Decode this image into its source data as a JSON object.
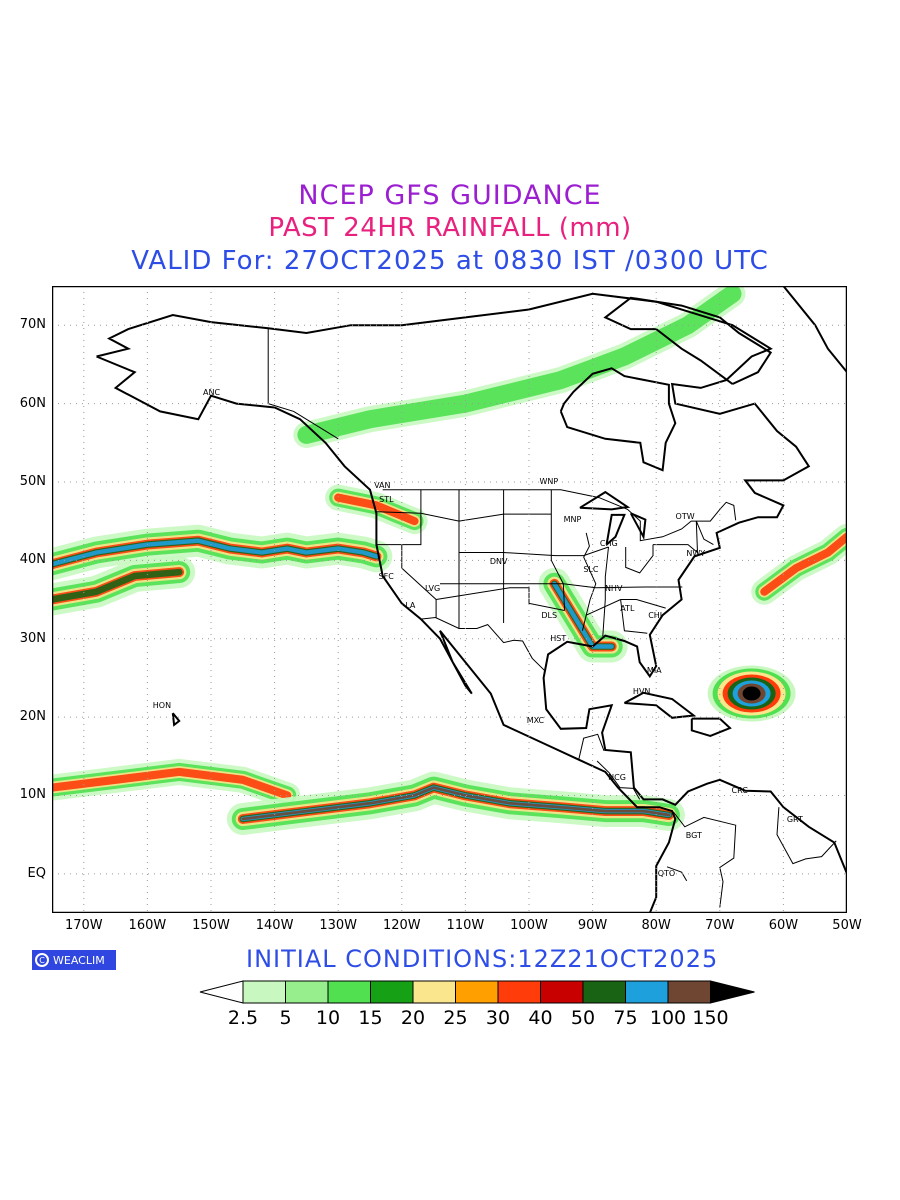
{
  "title": {
    "line1": "NCEP GFS GUIDANCE",
    "line2": "PAST 24HR RAINFALL (mm)",
    "line3": "VALID For: 27OCT2025 at 0830 IST /0300 UTC"
  },
  "colors": {
    "title1": "#9b1fd1",
    "title2": "#e8217f",
    "title3": "#2d4de6",
    "land_outline": "#000000",
    "grid": "#999999"
  },
  "map": {
    "lon_range": [
      -175,
      -50
    ],
    "lat_range": [
      -5,
      75
    ],
    "lat_labels": [
      "70N",
      "60N",
      "50N",
      "40N",
      "30N",
      "20N",
      "10N",
      "EQ"
    ],
    "lon_labels": [
      "170W",
      "160W",
      "150W",
      "140W",
      "130W",
      "120W",
      "110W",
      "100W",
      "90W",
      "80W",
      "70W",
      "60W",
      "50W"
    ],
    "cities": [
      {
        "name": "ANC",
        "lon": -150,
        "lat": 61.2
      },
      {
        "name": "VAN",
        "lon": -123.1,
        "lat": 49.3
      },
      {
        "name": "STL",
        "lon": -122.3,
        "lat": 47.6
      },
      {
        "name": "WNP",
        "lon": -97.1,
        "lat": 49.9
      },
      {
        "name": "MNP",
        "lon": -93.3,
        "lat": 45.0
      },
      {
        "name": "OTW",
        "lon": -75.7,
        "lat": 45.4
      },
      {
        "name": "CHG",
        "lon": -87.6,
        "lat": 41.9
      },
      {
        "name": "NWY",
        "lon": -74.0,
        "lat": 40.7
      },
      {
        "name": "DNV",
        "lon": -104.9,
        "lat": 39.7
      },
      {
        "name": "SFC",
        "lon": -122.4,
        "lat": 37.8
      },
      {
        "name": "SLC",
        "lon": -90.2,
        "lat": 38.6
      },
      {
        "name": "LVG",
        "lon": -115.1,
        "lat": 36.2
      },
      {
        "name": "NHV",
        "lon": -86.8,
        "lat": 36.2
      },
      {
        "name": "LA",
        "lon": -118.2,
        "lat": 34.0
      },
      {
        "name": "ATL",
        "lon": -84.4,
        "lat": 33.7
      },
      {
        "name": "DLS",
        "lon": -96.8,
        "lat": 32.8
      },
      {
        "name": "CHI",
        "lon": -80.0,
        "lat": 32.8
      },
      {
        "name": "HST",
        "lon": -95.4,
        "lat": 29.8
      },
      {
        "name": "MIA",
        "lon": -80.2,
        "lat": 25.8
      },
      {
        "name": "HVN",
        "lon": -82.4,
        "lat": 23.1
      },
      {
        "name": "HON",
        "lon": -157.9,
        "lat": 21.3
      },
      {
        "name": "MXC",
        "lon": -99.1,
        "lat": 19.4
      },
      {
        "name": "NCG",
        "lon": -86.3,
        "lat": 12.1
      },
      {
        "name": "CRC",
        "lon": -66.9,
        "lat": 10.5
      },
      {
        "name": "GRT",
        "lon": -58.2,
        "lat": 6.8
      },
      {
        "name": "BGT",
        "lon": -74.1,
        "lat": 4.7
      },
      {
        "name": "QTO",
        "lon": -78.5,
        "lat": -0.2
      }
    ]
  },
  "logo": {
    "text": "WEACLIM",
    "mark": "C"
  },
  "initial_conditions": "INITIAL  CONDITIONS:12Z21OCT2025",
  "legend": {
    "unit": "mm",
    "bins": [
      {
        "color": "#ffffff"
      },
      {
        "color": "#c8f8c0"
      },
      {
        "color": "#96ee8c"
      },
      {
        "color": "#50e050"
      },
      {
        "color": "#16a016"
      },
      {
        "color": "#fae68c"
      },
      {
        "color": "#ffa000"
      },
      {
        "color": "#ff3c0a"
      },
      {
        "color": "#c80000"
      },
      {
        "color": "#196414"
      },
      {
        "color": "#1ea0dc"
      },
      {
        "color": "#6e4632"
      },
      {
        "color": "#000000"
      }
    ],
    "labels": [
      "2.5",
      "5",
      "10",
      "15",
      "20",
      "25",
      "30",
      "40",
      "50",
      "75",
      "100",
      "150"
    ]
  },
  "precip_features": [
    {
      "kind": "band",
      "lon": [
        -175,
        -168,
        -160,
        -152,
        -147,
        -142,
        -138,
        -135,
        -130,
        -126,
        -124
      ],
      "lat": [
        39.5,
        41,
        42,
        42.5,
        41.5,
        41,
        41.5,
        41,
        41.5,
        41,
        40.5
      ],
      "max": 75
    },
    {
      "kind": "band",
      "lon": [
        -175,
        -168,
        -162,
        -155
      ],
      "lat": [
        35,
        36,
        38,
        38.5
      ],
      "max": 50
    },
    {
      "kind": "band",
      "lon": [
        -130,
        -124,
        -121,
        -118
      ],
      "lat": [
        48,
        47,
        46,
        45
      ],
      "max": 30
    },
    {
      "kind": "band",
      "lon": [
        -175,
        -165,
        -155,
        -145,
        -138
      ],
      "lat": [
        11,
        12,
        13,
        12,
        10
      ],
      "max": 40
    },
    {
      "kind": "band",
      "lon": [
        -145,
        -135,
        -125,
        -118,
        -115,
        -110,
        -103,
        -95,
        -88,
        -82,
        -78
      ],
      "lat": [
        7,
        8,
        9,
        10,
        11,
        10,
        9,
        8.5,
        8,
        8,
        7.5
      ],
      "max": 100
    },
    {
      "kind": "band",
      "lon": [
        -96,
        -93,
        -90,
        -87
      ],
      "lat": [
        37,
        33,
        29,
        29
      ],
      "max": 75
    },
    {
      "kind": "cell",
      "lon": -65,
      "lat": 23,
      "max": 150
    },
    {
      "kind": "band",
      "lon": [
        -63,
        -58,
        -53,
        -50
      ],
      "lat": [
        36,
        39,
        41,
        43
      ],
      "max": 40
    },
    {
      "kind": "band",
      "lon": [
        -135,
        -125,
        -110,
        -95,
        -85,
        -75,
        -68
      ],
      "lat": [
        56,
        58,
        60,
        63,
        66,
        70,
        74
      ],
      "max": 15
    }
  ]
}
